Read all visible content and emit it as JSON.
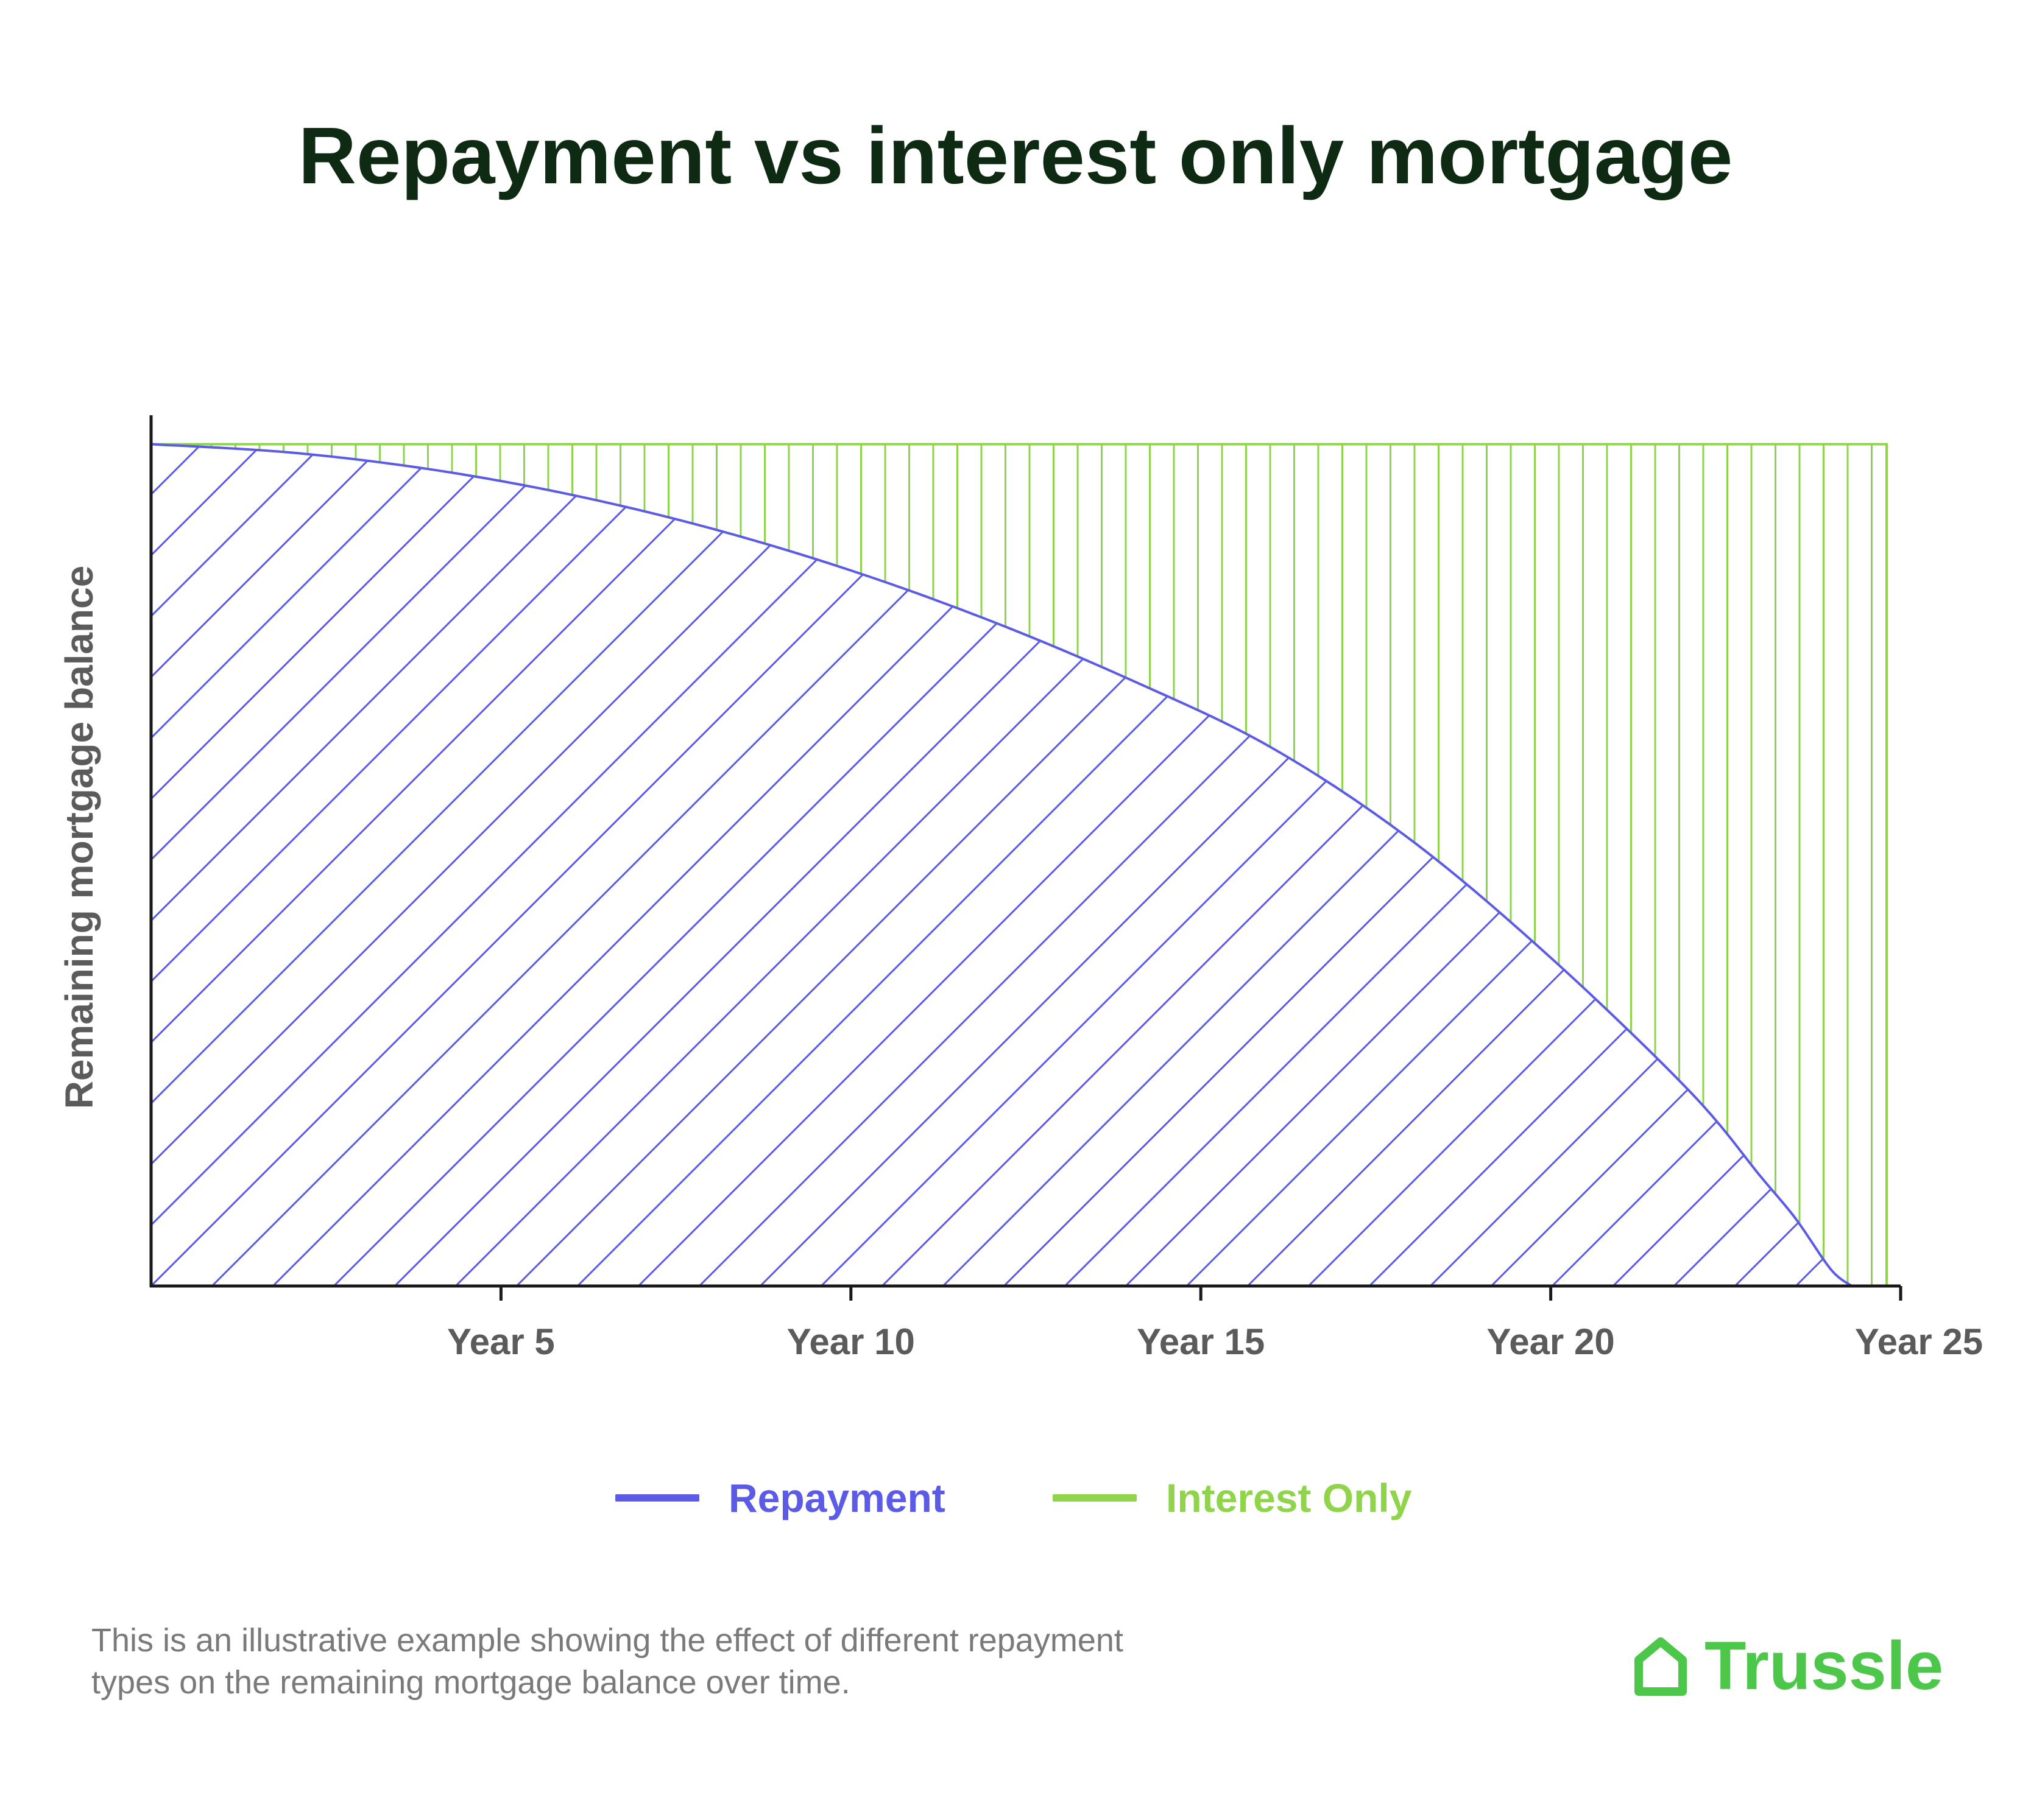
{
  "title": "Repayment vs interest only mortgage",
  "chart_data": {
    "type": "area",
    "title": "Repayment vs interest only mortgage",
    "xlabel": "",
    "ylabel": "Remaining mortgage balance",
    "x_tick_labels": [
      "Year 5",
      "Year 10",
      "Year 15",
      "Year 20",
      "Year 25"
    ],
    "x_ticks": [
      5,
      10,
      15,
      20,
      25
    ],
    "xlim": [
      0,
      25
    ],
    "ylim": [
      0,
      1.03
    ],
    "grid": false,
    "legend_position": "bottom-center",
    "series": [
      {
        "name": "Repayment",
        "color": "#5b5be6",
        "fill_pattern": "diagonal-hatch",
        "x": [
          0,
          2,
          4,
          6,
          8,
          10,
          12,
          14,
          16,
          18,
          20,
          22,
          23,
          23.5,
          24,
          24.3
        ],
        "y": [
          1.0,
          0.99,
          0.97,
          0.94,
          0.9,
          0.85,
          0.79,
          0.72,
          0.64,
          0.53,
          0.39,
          0.23,
          0.13,
          0.08,
          0.02,
          0.0
        ]
      },
      {
        "name": "Interest Only",
        "color": "#8fd44a",
        "fill_pattern": "vertical-hatch",
        "x": [
          0,
          24.8
        ],
        "y": [
          1.0,
          1.0
        ]
      }
    ]
  },
  "legend": [
    {
      "label": "Repayment",
      "color": "#5b5be6"
    },
    {
      "label": "Interest Only",
      "color": "#8fd44a"
    }
  ],
  "footnote": "This is an illustrative example showing the effect of different repayment types on the remaining mortgage balance over time.",
  "brand": {
    "name": "Trussle",
    "icon": "house-icon",
    "color": "#4cc74a"
  }
}
